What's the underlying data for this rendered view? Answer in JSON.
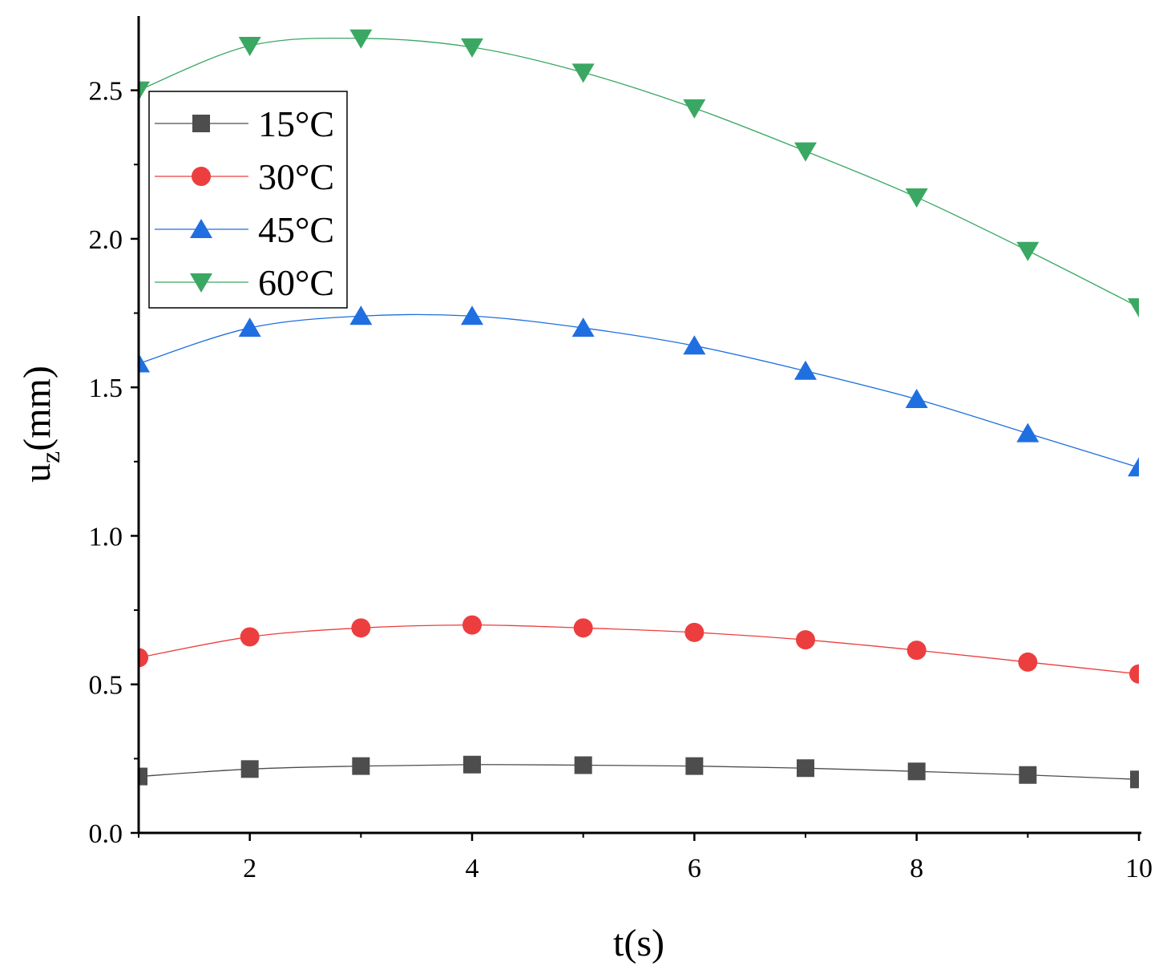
{
  "chart_data": {
    "type": "line",
    "title": "",
    "xlabel": "t(s)",
    "ylabel_main": "u",
    "ylabel_sub": "z",
    "ylabel_unit": "(mm)",
    "xlim": [
      1,
      10
    ],
    "ylim": [
      0,
      2.75
    ],
    "xticks": [
      2,
      4,
      6,
      8,
      10
    ],
    "xtick_labels": [
      "2",
      "4",
      "6",
      "8",
      "10"
    ],
    "yticks": [
      0.0,
      0.5,
      1.0,
      1.5,
      2.0,
      2.5
    ],
    "ytick_labels": [
      "0.0",
      "0.5",
      "1.0",
      "1.5",
      "2.0",
      "2.5"
    ],
    "grid": false,
    "legend_position": "top-left",
    "x": [
      1,
      2,
      3,
      4,
      5,
      6,
      7,
      8,
      9,
      10
    ],
    "series": [
      {
        "name": "15°C",
        "marker": "square",
        "color": "#4d4d4d",
        "values": [
          0.19,
          0.215,
          0.225,
          0.23,
          0.228,
          0.225,
          0.218,
          0.207,
          0.195,
          0.18
        ]
      },
      {
        "name": "30°C",
        "marker": "circle",
        "color": "#ec3e3e",
        "values": [
          0.59,
          0.66,
          0.69,
          0.7,
          0.69,
          0.675,
          0.65,
          0.615,
          0.575,
          0.535
        ]
      },
      {
        "name": "45°C",
        "marker": "triangle-up",
        "color": "#1f6fe0",
        "values": [
          1.58,
          1.7,
          1.74,
          1.74,
          1.7,
          1.64,
          1.555,
          1.46,
          1.345,
          1.23
        ]
      },
      {
        "name": "60°C",
        "marker": "triangle-down",
        "color": "#3aa862",
        "values": [
          2.5,
          2.65,
          2.675,
          2.645,
          2.56,
          2.44,
          2.295,
          2.14,
          1.96,
          1.77
        ]
      }
    ]
  }
}
